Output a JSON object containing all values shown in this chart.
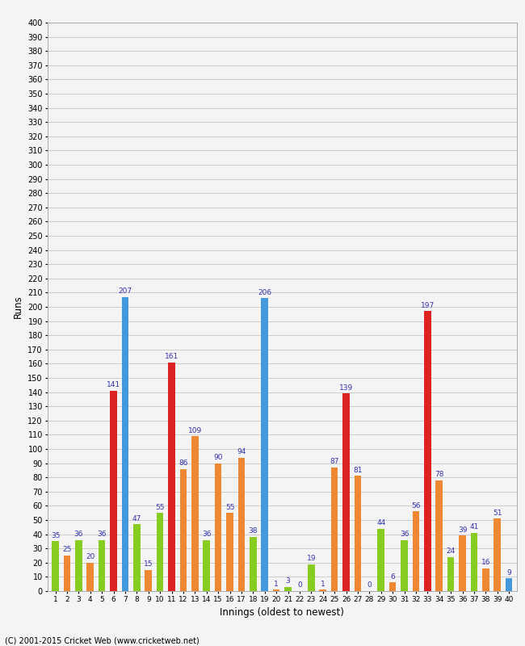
{
  "xlabel": "Innings (oldest to newest)",
  "ylabel": "Runs",
  "footer": "(C) 2001-2015 Cricket Web (www.cricketweb.net)",
  "ylim": [
    0,
    400
  ],
  "yticks": [
    0,
    10,
    20,
    30,
    40,
    50,
    60,
    70,
    80,
    90,
    100,
    110,
    120,
    130,
    140,
    150,
    160,
    170,
    180,
    190,
    200,
    210,
    220,
    230,
    240,
    250,
    260,
    270,
    280,
    290,
    300,
    310,
    320,
    330,
    340,
    350,
    360,
    370,
    380,
    390,
    400
  ],
  "innings_labels": [
    "1",
    "2",
    "3",
    "4",
    "5",
    "6",
    "7",
    "8",
    "9",
    "10",
    "11",
    "12",
    "13",
    "14",
    "15",
    "16",
    "17",
    "18",
    "19",
    "20",
    "21",
    "22",
    "23",
    "24",
    "25",
    "26",
    "27",
    "28",
    "29",
    "30",
    "31",
    "32",
    "33",
    "34",
    "35",
    "36",
    "37",
    "38",
    "39",
    "40"
  ],
  "bars": [
    {
      "inning": 1,
      "value": 35,
      "color": "green"
    },
    {
      "inning": 2,
      "value": 25,
      "color": "orange"
    },
    {
      "inning": 3,
      "value": 36,
      "color": "green"
    },
    {
      "inning": 4,
      "value": 20,
      "color": "orange"
    },
    {
      "inning": 5,
      "value": 36,
      "color": "green"
    },
    {
      "inning": 6,
      "value": 141,
      "color": "red"
    },
    {
      "inning": 7,
      "value": 207,
      "color": "blue"
    },
    {
      "inning": 8,
      "value": 47,
      "color": "green"
    },
    {
      "inning": 9,
      "value": 15,
      "color": "orange"
    },
    {
      "inning": 10,
      "value": 55,
      "color": "green"
    },
    {
      "inning": 11,
      "value": 161,
      "color": "red"
    },
    {
      "inning": 12,
      "value": 86,
      "color": "orange"
    },
    {
      "inning": 13,
      "value": 109,
      "color": "orange"
    },
    {
      "inning": 14,
      "value": 36,
      "color": "green"
    },
    {
      "inning": 15,
      "value": 90,
      "color": "orange"
    },
    {
      "inning": 16,
      "value": 55,
      "color": "orange"
    },
    {
      "inning": 17,
      "value": 94,
      "color": "orange"
    },
    {
      "inning": 18,
      "value": 38,
      "color": "green"
    },
    {
      "inning": 19,
      "value": 206,
      "color": "blue"
    },
    {
      "inning": 20,
      "value": 1,
      "color": "orange"
    },
    {
      "inning": 21,
      "value": 3,
      "color": "green"
    },
    {
      "inning": 22,
      "value": 0,
      "color": "orange"
    },
    {
      "inning": 23,
      "value": 19,
      "color": "green"
    },
    {
      "inning": 24,
      "value": 1,
      "color": "orange"
    },
    {
      "inning": 25,
      "value": 87,
      "color": "orange"
    },
    {
      "inning": 26,
      "value": 139,
      "color": "red"
    },
    {
      "inning": 27,
      "value": 81,
      "color": "orange"
    },
    {
      "inning": 28,
      "value": 0,
      "color": "green"
    },
    {
      "inning": 29,
      "value": 44,
      "color": "green"
    },
    {
      "inning": 30,
      "value": 6,
      "color": "orange"
    },
    {
      "inning": 31,
      "value": 36,
      "color": "green"
    },
    {
      "inning": 32,
      "value": 56,
      "color": "orange"
    },
    {
      "inning": 33,
      "value": 197,
      "color": "red"
    },
    {
      "inning": 34,
      "value": 78,
      "color": "orange"
    },
    {
      "inning": 35,
      "value": 24,
      "color": "green"
    },
    {
      "inning": 36,
      "value": 39,
      "color": "orange"
    },
    {
      "inning": 37,
      "value": 41,
      "color": "green"
    },
    {
      "inning": 38,
      "value": 16,
      "color": "orange"
    },
    {
      "inning": 39,
      "value": 51,
      "color": "orange"
    },
    {
      "inning": 40,
      "value": 9,
      "color": "blue"
    }
  ],
  "color_map": {
    "blue": "#4499DD",
    "red": "#DD2222",
    "orange": "#EE8833",
    "green": "#88CC22"
  },
  "bar_width": 0.6,
  "bg_color": "#F4F4F4",
  "grid_color": "#CCCCCC",
  "label_color": "#3333AA",
  "label_fontsize": 6.5,
  "figsize": [
    6.5,
    8.0
  ],
  "dpi": 100
}
